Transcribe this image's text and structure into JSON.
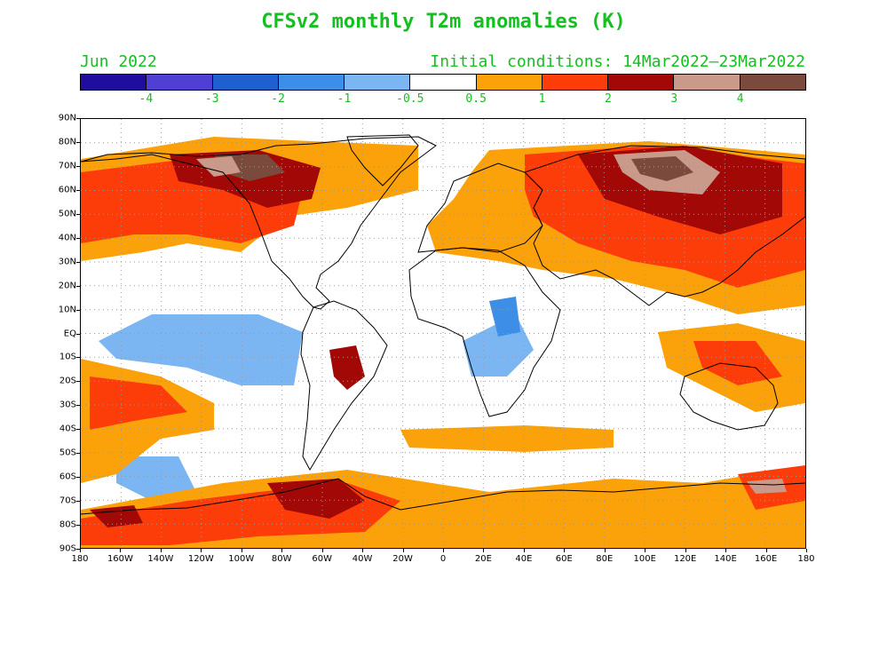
{
  "title": "CFSv2 monthly T2m anomalies (K)",
  "valid_month": "Jun 2022",
  "initial_conditions": "Initial conditions: 14Mar2022–23Mar2022",
  "colorbar": {
    "colors": [
      "#200d9e",
      "#4f3fd2",
      "#1f5fd0",
      "#3c8ee6",
      "#7bb6f2",
      "#ffffff",
      "#fba20b",
      "#fc3d0a",
      "#a10806",
      "#c9998a",
      "#7a4a3c"
    ],
    "labels": [
      "-4",
      "-3",
      "-2",
      "-1",
      "-0.5",
      "0.5",
      "1",
      "2",
      "3",
      "4"
    ]
  },
  "axes": {
    "lat_labels": [
      "90N",
      "80N",
      "70N",
      "60N",
      "50N",
      "40N",
      "30N",
      "20N",
      "10N",
      "EQ",
      "10S",
      "20S",
      "30S",
      "40S",
      "50S",
      "60S",
      "70S",
      "80S",
      "90S"
    ],
    "lon_labels": [
      "180",
      "160W",
      "140W",
      "120W",
      "100W",
      "80W",
      "60W",
      "40W",
      "20W",
      "0",
      "20E",
      "40E",
      "60E",
      "80E",
      "100E",
      "120E",
      "140E",
      "160E",
      "180"
    ]
  }
}
